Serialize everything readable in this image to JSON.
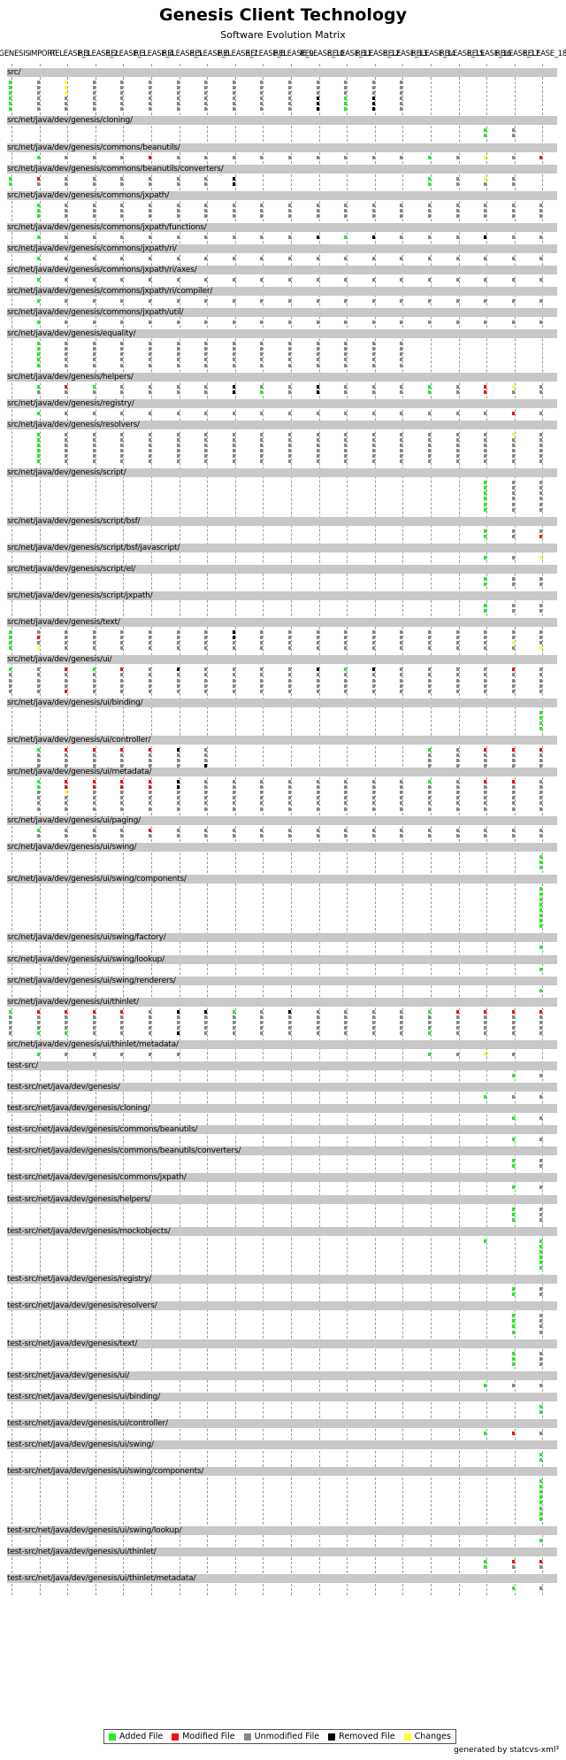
{
  "title": "Genesis Client Technology",
  "subtitle": "Software Evolution Matrix",
  "footer": "generated by statcvs-xml³",
  "legend": [
    {
      "label": "Added File",
      "color": "#22ee22"
    },
    {
      "label": "Modified File",
      "color": "#ee1111"
    },
    {
      "label": "Unmodified File",
      "color": "#888888"
    },
    {
      "label": "Removed File",
      "color": "#000000"
    },
    {
      "label": "Changes",
      "color": "#ffff33"
    }
  ],
  "chart_data": {
    "type": "evolution-matrix",
    "title": "Software Evolution Matrix",
    "revisions": [
      "GENESIS",
      "IMPORT",
      "RELEASE_1",
      "RELEASE_2",
      "RELEASE_3",
      "RELEASE_4",
      "RELEASE_5",
      "RELEASE_6",
      "RELEASE_7",
      "RELEASE_8",
      "RELEASE_9",
      "RELEASE_10",
      "RELEASE_11",
      "RELEASE_12",
      "RELEASE_13",
      "RELEASE_14",
      "RELEASE_15",
      "RELEASE_16",
      "RELEASE_17",
      "RELEASE_18"
    ],
    "revision_labels": [
      "GENESIS",
      "IMPORT",
      "RELEASE_1",
      "RELEASE_2",
      "RELEASE_3",
      "RELEASE_4",
      "RELEASE_5",
      "RELEASE_6",
      "RELEASE_7",
      "RELEASE_8",
      "RELEASE_9",
      "RELEASE_10",
      "RELEASE_11",
      "RELEASE_12",
      "RELEASE_13",
      "RELEASE_14",
      "RELEASE_15",
      "RELEASE_16",
      "RELEASE_17",
      "RELEASE_18"
    ],
    "status_colors": {
      "A": "#22ee22",
      "M": "#ee1111",
      "U": "#888888",
      "R": "#000000",
      "C": "#ffff33"
    },
    "directories": [
      {
        "path": "src/",
        "files": 6,
        "cells": {
          "0": "AAAAAA",
          "1": "UUUUUU",
          "2": "CCCUUU",
          "3": "UUUUUU",
          "4": "UUUUUU",
          "5": "UUUUUU",
          "6": "UUUUUU",
          "7": "UUUUUU",
          "8": "UUUUUU",
          "9": "UUUUUU",
          "10": "UUUUUU",
          "11": "UUURRR",
          "12": "UUUAAA",
          "13": "UUURRR",
          "14": "UUUUUU"
        }
      },
      {
        "path": "src/net/java/dev/genesis/cloning/",
        "files": 2,
        "cells": {
          "17": "AA",
          "18": "UU"
        }
      },
      {
        "path": "src/net/java/dev/genesis/commons/beanutils/",
        "files": 1,
        "cells": {
          "1": "A",
          "2": "U",
          "3": "U",
          "4": "U",
          "5": "M",
          "6": "U",
          "7": "U",
          "8": "U",
          "9": "U",
          "10": "U",
          "11": "U",
          "12": "U",
          "13": "U",
          "14": "U",
          "15": "A",
          "16": "U",
          "17": "C",
          "18": "U",
          "19": "M"
        }
      },
      {
        "path": "src/net/java/dev/genesis/commons/beanutils/converters/",
        "files": 2,
        "cells": {
          "0": "AA",
          "1": "MU",
          "2": "UU",
          "3": "UU",
          "4": "UU",
          "5": "UU",
          "6": "UU",
          "7": "UU",
          "8": "RR",
          "15": "AA",
          "16": "UU",
          "17": "CU",
          "18": "UU"
        }
      },
      {
        "path": "src/net/java/dev/genesis/commons/jxpath/",
        "files": 3,
        "cells": {
          "1": "AAA",
          "2": "UUU",
          "3": "UUU",
          "4": "UUU",
          "5": "UUU",
          "6": "UUU",
          "7": "UUU",
          "8": "UUU",
          "9": "UUU",
          "10": "UUU",
          "11": "UUU",
          "12": "UUU",
          "13": "UUU",
          "14": "UUU",
          "15": "UUU",
          "16": "UUU",
          "17": "UUU",
          "18": "UUU",
          "19": "UUU"
        }
      },
      {
        "path": "src/net/java/dev/genesis/commons/jxpath/functions/",
        "files": 1,
        "cells": {
          "1": "A",
          "2": "U",
          "3": "U",
          "4": "U",
          "5": "U",
          "6": "U",
          "7": "U",
          "8": "U",
          "9": "U",
          "10": "U",
          "11": "R",
          "12": "A",
          "13": "R",
          "14": "U",
          "15": "U",
          "16": "U",
          "17": "R",
          "18": "U",
          "19": "U"
        }
      },
      {
        "path": "src/net/java/dev/genesis/commons/jxpath/ri/",
        "files": 1,
        "cells": {
          "1": "A",
          "2": "U",
          "3": "U",
          "4": "U",
          "5": "U",
          "6": "U",
          "7": "U",
          "8": "U",
          "9": "U",
          "10": "U",
          "11": "U",
          "12": "U",
          "13": "U",
          "14": "U",
          "15": "U",
          "16": "U",
          "17": "U",
          "18": "U",
          "19": "U"
        }
      },
      {
        "path": "src/net/java/dev/genesis/commons/jxpath/ri/axes/",
        "files": 1,
        "cells": {
          "1": "A",
          "2": "U",
          "3": "U",
          "4": "U",
          "5": "U",
          "6": "U",
          "7": "U",
          "8": "U",
          "9": "U",
          "10": "U",
          "11": "U",
          "12": "U",
          "13": "U",
          "14": "U",
          "15": "U",
          "16": "U",
          "17": "U",
          "18": "U",
          "19": "U"
        }
      },
      {
        "path": "src/net/java/dev/genesis/commons/jxpath/ri/compiler/",
        "files": 1,
        "cells": {
          "1": "A",
          "2": "U",
          "3": "U",
          "4": "U",
          "5": "U",
          "6": "U",
          "7": "U",
          "8": "U",
          "9": "U",
          "10": "U",
          "11": "U",
          "12": "U",
          "13": "U",
          "14": "U",
          "15": "U",
          "16": "U",
          "17": "U",
          "18": "U",
          "19": "U"
        }
      },
      {
        "path": "src/net/java/dev/genesis/commons/jxpath/util/",
        "files": 1,
        "cells": {
          "1": "A",
          "2": "U",
          "3": "U",
          "4": "U",
          "5": "U",
          "6": "U",
          "7": "U",
          "8": "U",
          "9": "U",
          "10": "U",
          "11": "U",
          "12": "U",
          "13": "U",
          "14": "U",
          "15": "U",
          "16": "U",
          "17": "U",
          "18": "U",
          "19": "U"
        }
      },
      {
        "path": "src/net/java/dev/genesis/equality/",
        "files": 5,
        "cells": {
          "1": "AAAAA",
          "2": "UUUUU",
          "3": "UUUUU",
          "4": "UUUUU",
          "5": "UUUUU",
          "6": "UUUUU",
          "7": "UUUUU",
          "8": "UUUUU",
          "9": "UUUUU",
          "10": "UUUUU",
          "11": "UUUUU",
          "12": "UUUUU",
          "13": "UUUUU",
          "14": "UUUUU"
        }
      },
      {
        "path": "src/net/java/dev/genesis/helpers/",
        "files": 2,
        "cells": {
          "1": "AU",
          "2": "MU",
          "3": "AU",
          "4": "UU",
          "5": "UU",
          "6": "UU",
          "7": "UU",
          "8": "RR",
          "9": "UA",
          "10": "UU",
          "11": "RR",
          "12": "UU",
          "13": "UU",
          "14": "UU",
          "15": "AA",
          "16": "UU",
          "17": "MM",
          "18": "CU",
          "19": "UU"
        }
      },
      {
        "path": "src/net/java/dev/genesis/registry/",
        "files": 1,
        "cells": {
          "1": "A",
          "2": "U",
          "3": "U",
          "4": "U",
          "5": "U",
          "6": "U",
          "7": "U",
          "8": "U",
          "9": "U",
          "10": "U",
          "11": "U",
          "12": "U",
          "13": "U",
          "14": "U",
          "15": "U",
          "16": "U",
          "17": "U",
          "18": "M",
          "19": "U"
        }
      },
      {
        "path": "src/net/java/dev/genesis/resolvers/",
        "files": 6,
        "cells": {
          "1": "AAAAAA",
          "2": "UUUUUU",
          "3": "UUUUUU",
          "4": "UUUUUU",
          "5": "UUUUUU",
          "6": "UUUUUU",
          "7": "UUUUUU",
          "8": "UUUUUU",
          "9": "UUUUUU",
          "10": "UUUUUU",
          "11": "UUUUUU",
          "12": "UUUUUU",
          "13": "UUUUUU",
          "14": "UUUUUU",
          "15": "UUUUUU",
          "16": "UUUUUU",
          "17": "UUUUUU",
          "18": "CUUUUU",
          "19": "UUUUUU"
        }
      },
      {
        "path": "src/net/java/dev/genesis/script/",
        "files": 6,
        "cells": {
          "17": "AAAAAA",
          "18": "UUUUUU",
          "19": "UUUUUU"
        }
      },
      {
        "path": "src/net/java/dev/genesis/script/bsf/",
        "files": 2,
        "cells": {
          "17": "AA",
          "18": "UU",
          "19": "UM"
        }
      },
      {
        "path": "src/net/java/dev/genesis/script/bsf/javascript/",
        "files": 1,
        "cells": {
          "17": "A",
          "18": "U",
          "19": "C"
        }
      },
      {
        "path": "src/net/java/dev/genesis/script/el/",
        "files": 2,
        "cells": {
          "17": "AA",
          "18": "UU",
          "19": "UU"
        }
      },
      {
        "path": "src/net/java/dev/genesis/script/jxpath/",
        "files": 2,
        "cells": {
          "17": "AA",
          "18": "UU",
          "19": "UU"
        }
      },
      {
        "path": "src/net/java/dev/genesis/text/",
        "files": 4,
        "cells": {
          "0": "AAAA",
          "1": "UMUC",
          "2": "UUUU",
          "3": "UUUU",
          "4": "UUUU",
          "5": "UUUU",
          "6": "UUUU",
          "7": "UUUU",
          "8": "RRUU",
          "9": "UUUU",
          "10": "UUUU",
          "11": "UUUU",
          "12": "UUUU",
          "13": "UUUU",
          "14": "UUUU",
          "15": "UUUU",
          "16": "UUUU",
          "17": "UUUU",
          "18": "UUCU",
          "19": "UUUC"
        }
      },
      {
        "path": "src/net/java/dev/genesis/ui/",
        "files": 5,
        "cells": {
          "0": "AUUUU",
          "1": "UUUUU",
          "2": "MUUUM",
          "3": "AUUUU",
          "4": "MUUUU",
          "5": "UUUUU",
          "6": "RUUUU",
          "7": "UUUUU",
          "8": "UUUUU",
          "9": "UUUUU",
          "10": "UUUUU",
          "11": "RUUUU",
          "12": "AUUUU",
          "13": "RUUUU",
          "14": "UUUUU",
          "15": "UUUUU",
          "16": "UUUUU",
          "17": "UUUUU",
          "18": "MUUUU",
          "19": "UUUUU"
        }
      },
      {
        "path": "src/net/java/dev/genesis/ui/binding/",
        "files": 4,
        "cells": {
          "19": "AAAA"
        }
      },
      {
        "path": "src/net/java/dev/genesis/ui/controller/",
        "files": 3,
        "cells": {
          "1": "AUUU",
          "2": "MUUU",
          "3": "MUUU",
          "4": "MUUU",
          "5": "MUUU",
          "6": "RUUU",
          "7": "UUUR",
          "15": "AUUU",
          "16": "UUUU",
          "17": "MUUU",
          "18": "MUUU",
          "19": "MUUU"
        }
      },
      {
        "path": "src/net/java/dev/genesis/ui/metadata/",
        "files": 6,
        "cells": {
          "1": "AAUUUU",
          "2": "MMCUUU",
          "3": "MMUUUU",
          "4": "MMUUUU",
          "5": "MMUUUU",
          "6": "RRUUUU",
          "7": "UUUUUU",
          "8": "UUUUUU",
          "9": "UUUUUU",
          "10": "UUUUUU",
          "11": "UUUUUU",
          "12": "UUUUUU",
          "13": "UUUUUU",
          "14": "UUUUUU",
          "15": "AUUUUU",
          "16": "UUUUUU",
          "17": "MUUUUU",
          "18": "MUUUUU",
          "19": "UUUUUU"
        }
      },
      {
        "path": "src/net/java/dev/genesis/ui/paging/",
        "files": 2,
        "cells": {
          "1": "AU",
          "2": "UU",
          "3": "UU",
          "4": "UU",
          "5": "MU",
          "6": "UU",
          "7": "UU",
          "8": "UU",
          "9": "UU",
          "10": "UU",
          "11": "UU",
          "12": "UU",
          "13": "UU",
          "14": "UU",
          "15": "UU",
          "16": "UU",
          "17": "UU",
          "18": "UU",
          "19": "UU"
        }
      },
      {
        "path": "src/net/java/dev/genesis/ui/swing/",
        "files": 3,
        "cells": {
          "19": "AAA"
        }
      },
      {
        "path": "src/net/java/dev/genesis/ui/swing/components/",
        "files": 8,
        "cells": {
          "19": "AAAAAAAA"
        }
      },
      {
        "path": "src/net/java/dev/genesis/ui/swing/factory/",
        "files": 1,
        "cells": {
          "19": "A"
        }
      },
      {
        "path": "src/net/java/dev/genesis/ui/swing/lookup/",
        "files": 1,
        "cells": {
          "19": "A"
        }
      },
      {
        "path": "src/net/java/dev/genesis/ui/swing/renderers/",
        "files": 1,
        "cells": {
          "19": "A"
        }
      },
      {
        "path": "src/net/java/dev/genesis/ui/thinlet/",
        "files": 5,
        "cells": {
          "0": "AUUUU",
          "1": "MUUUA",
          "2": "MUUUA",
          "3": "MUUUU",
          "4": "MUUUU",
          "5": "UUUUU",
          "6": "RUUUR",
          "7": "RUUUU",
          "8": "AUUUU",
          "9": "UUUUU",
          "10": "RUUUU",
          "11": "UUUUU",
          "12": "UUUUU",
          "13": "UUUUU",
          "14": "UUUUU",
          "15": "AUUUA",
          "16": "MUUUU",
          "17": "MUUUU",
          "18": "MUUUU",
          "19": "MUUUU"
        }
      },
      {
        "path": "src/net/java/dev/genesis/ui/thinlet/metadata/",
        "files": 1,
        "cells": {
          "1": "A",
          "2": "U",
          "3": "U",
          "4": "U",
          "5": "U",
          "6": "U",
          "15": "A",
          "16": "U",
          "17": "C",
          "18": "U"
        }
      },
      {
        "path": "test-src/",
        "files": 1,
        "cells": {
          "18": "A",
          "19": "U"
        }
      },
      {
        "path": "test-src/net/java/dev/genesis/",
        "files": 1,
        "cells": {
          "17": "A",
          "18": "U",
          "19": "U"
        }
      },
      {
        "path": "test-src/net/java/dev/genesis/cloning/",
        "files": 1,
        "cells": {
          "18": "A",
          "19": "U"
        }
      },
      {
        "path": "test-src/net/java/dev/genesis/commons/beanutils/",
        "files": 1,
        "cells": {
          "18": "A",
          "19": "U"
        }
      },
      {
        "path": "test-src/net/java/dev/genesis/commons/beanutils/converters/",
        "files": 2,
        "cells": {
          "18": "AA",
          "19": "UU"
        }
      },
      {
        "path": "test-src/net/java/dev/genesis/commons/jxpath/",
        "files": 1,
        "cells": {
          "18": "A",
          "19": "U"
        }
      },
      {
        "path": "test-src/net/java/dev/genesis/helpers/",
        "files": 3,
        "cells": {
          "18": "AAA",
          "19": "UUU"
        }
      },
      {
        "path": "test-src/net/java/dev/genesis/mockobjects/",
        "files": 6,
        "cells": {
          "17": "A",
          "19": "AAAAAA"
        }
      },
      {
        "path": "test-src/net/java/dev/genesis/registry/",
        "files": 2,
        "cells": {
          "18": "AA",
          "19": "UU"
        }
      },
      {
        "path": "test-src/net/java/dev/genesis/resolvers/",
        "files": 4,
        "cells": {
          "18": "AAAA",
          "19": "UUUU"
        }
      },
      {
        "path": "test-src/net/java/dev/genesis/text/",
        "files": 3,
        "cells": {
          "18": "AAA",
          "19": "UUU"
        }
      },
      {
        "path": "test-src/net/java/dev/genesis/ui/",
        "files": 1,
        "cells": {
          "17": "A",
          "18": "U",
          "19": "U"
        }
      },
      {
        "path": "test-src/net/java/dev/genesis/ui/binding/",
        "files": 2,
        "cells": {
          "19": "AA"
        }
      },
      {
        "path": "test-src/net/java/dev/genesis/ui/controller/",
        "files": 1,
        "cells": {
          "17": "A",
          "18": "M",
          "19": "U"
        }
      },
      {
        "path": "test-src/net/java/dev/genesis/ui/swing/",
        "files": 2,
        "cells": {
          "19": "AA"
        }
      },
      {
        "path": "test-src/net/java/dev/genesis/ui/swing/components/",
        "files": 8,
        "cells": {
          "19": "AAAAAAAA"
        }
      },
      {
        "path": "test-src/net/java/dev/genesis/ui/swing/lookup/",
        "files": 1,
        "cells": {
          "19": "A"
        }
      },
      {
        "path": "test-src/net/java/dev/genesis/ui/thinlet/",
        "files": 2,
        "cells": {
          "17": "AA",
          "18": "MU",
          "19": "MU"
        }
      },
      {
        "path": "test-src/net/java/dev/genesis/ui/thinlet/metadata/",
        "files": 1,
        "cells": {
          "18": "A",
          "19": "U"
        }
      }
    ]
  }
}
